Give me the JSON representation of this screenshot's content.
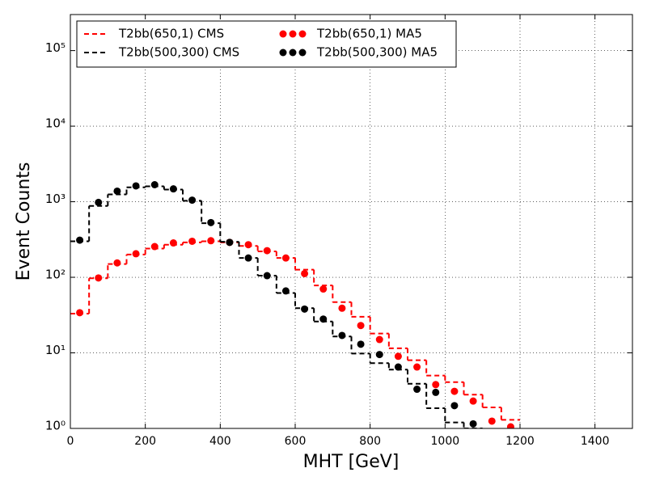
{
  "chart_data": {
    "type": "histogram",
    "x_label": "MHT [GeV]",
    "y_label": "Event Counts",
    "log_y": true,
    "grid": true,
    "legend": "upper left",
    "xlim": [
      0,
      1500
    ],
    "xticks": [
      0,
      200,
      400,
      600,
      800,
      1000,
      1200,
      1400
    ],
    "ylim": [
      1,
      300000
    ],
    "yticks": [
      {
        "value": 1,
        "label": "10⁰"
      },
      {
        "value": 10,
        "label": "10¹"
      },
      {
        "value": 100,
        "label": "10²"
      },
      {
        "value": 1000,
        "label": "10³"
      },
      {
        "value": 10000,
        "label": "10⁴"
      },
      {
        "value": 100000,
        "label": "10⁵"
      }
    ],
    "bins": [
      0,
      50,
      100,
      150,
      200,
      250,
      300,
      350,
      400,
      450,
      500,
      550,
      600,
      650,
      700,
      750,
      800,
      850,
      900,
      950,
      1000,
      1050,
      1100,
      1150,
      1200
    ],
    "x": [
      25,
      75,
      125,
      175,
      225,
      275,
      325,
      375,
      425,
      475,
      525,
      575,
      625,
      675,
      725,
      775,
      825,
      875,
      925,
      975,
      1025,
      1075,
      1125,
      1175
    ],
    "series": [
      {
        "name": "T2bb(650,1) CMS",
        "kind": "step",
        "color": "#ff0000",
        "values": [
          33,
          97,
          150,
          200,
          240,
          270,
          290,
          300,
          290,
          260,
          220,
          180,
          126,
          78,
          47,
          30,
          18,
          11.5,
          8,
          5,
          4.1,
          2.8,
          1.9,
          1.3
        ]
      },
      {
        "name": "T2bb(500,300) CMS",
        "kind": "step",
        "color": "#000000",
        "values": [
          300,
          880,
          1250,
          1550,
          1600,
          1450,
          1030,
          520,
          295,
          180,
          105,
          62,
          39,
          26,
          16.5,
          9.8,
          7.3,
          6,
          3.9,
          1.85,
          1.2,
          1.0,
          null,
          null
        ]
      },
      {
        "name": "T2bb(650,1) MA5",
        "kind": "scatter",
        "color": "#ff0000",
        "values": [
          34,
          98,
          155,
          205,
          255,
          285,
          300,
          305,
          290,
          270,
          225,
          180,
          112,
          70,
          39,
          23,
          15,
          9,
          6.5,
          3.8,
          3.1,
          2.3,
          1.25,
          1.05
        ]
      },
      {
        "name": "T2bb(500,300) MA5",
        "kind": "scatter",
        "color": "#000000",
        "values": [
          310,
          980,
          1380,
          1620,
          1680,
          1480,
          1050,
          530,
          290,
          180,
          105,
          66,
          38,
          28,
          17,
          13,
          9.5,
          6.5,
          3.3,
          3,
          2,
          1.15,
          null,
          null
        ]
      }
    ]
  }
}
